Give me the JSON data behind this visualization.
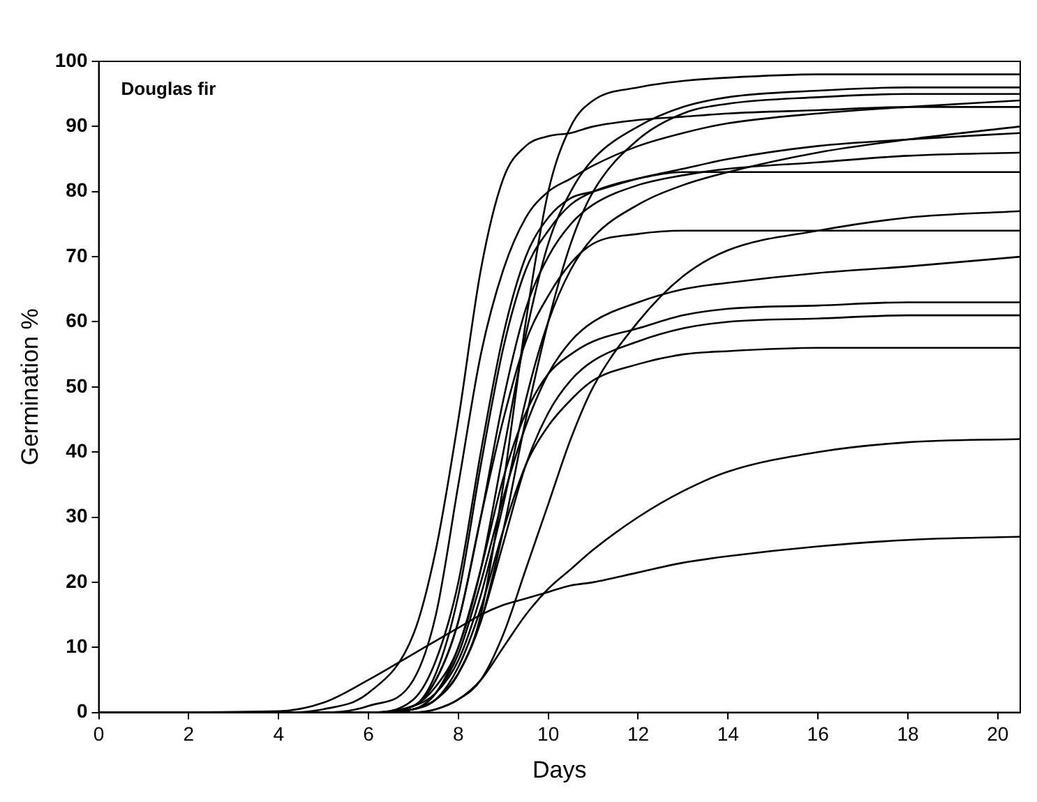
{
  "chart_data": {
    "type": "line",
    "xlabel": "Days",
    "ylabel": "Germination %",
    "annotations": [
      "Douglas fir"
    ],
    "x": [
      0,
      4,
      5,
      6,
      7,
      7.5,
      8,
      8.5,
      9,
      9.5,
      10,
      10.5,
      11,
      12,
      13,
      14,
      16,
      18,
      20.5
    ],
    "xlim": [
      0,
      20.5
    ],
    "xticks": [
      0,
      2,
      4,
      6,
      8,
      10,
      12,
      14,
      16,
      18,
      20
    ],
    "ylim": [
      0,
      100
    ],
    "yticks": [
      0,
      10,
      20,
      30,
      40,
      50,
      60,
      70,
      80,
      90,
      100
    ],
    "grid": false,
    "legend": false,
    "marker": "none",
    "line_style": "solid",
    "series": [
      {
        "color": "#000000",
        "values": [
          0,
          0,
          0,
          0,
          0.5,
          2,
          6,
          15,
          35,
          60,
          80,
          90,
          94,
          96,
          97,
          97.5,
          98,
          98,
          98
        ]
      },
      {
        "color": "#000000",
        "values": [
          0,
          0,
          0.5,
          3,
          12,
          25,
          45,
          68,
          82,
          87,
          88.5,
          89,
          90,
          91,
          91.5,
          92,
          92.5,
          93,
          93
        ]
      },
      {
        "color": "#000000",
        "values": [
          0,
          0,
          0,
          0,
          1,
          4,
          10,
          22,
          40,
          58,
          72,
          80,
          85,
          90,
          93,
          94.5,
          95.5,
          96,
          96
        ]
      },
      {
        "color": "#000000",
        "values": [
          0,
          0,
          0,
          0,
          0.5,
          2,
          6,
          14,
          28,
          45,
          60,
          72,
          80,
          88,
          92,
          93.5,
          94.5,
          95,
          95
        ]
      },
      {
        "color": "#000000",
        "values": [
          0,
          0,
          0,
          1,
          5,
          15,
          35,
          55,
          68,
          76,
          80,
          82,
          84,
          87,
          89,
          90.5,
          92,
          93,
          94
        ]
      },
      {
        "color": "#000000",
        "values": [
          0,
          0,
          0,
          0,
          1,
          3,
          8,
          18,
          32,
          48,
          60,
          68,
          73,
          78,
          81,
          83,
          86,
          88,
          90
        ]
      },
      {
        "color": "#000000",
        "values": [
          0,
          0,
          0,
          0,
          2,
          8,
          20,
          40,
          58,
          70,
          76,
          79,
          80,
          82,
          83.5,
          85,
          87,
          88,
          89
        ]
      },
      {
        "color": "#000000",
        "values": [
          0,
          0,
          0,
          0,
          1,
          5,
          14,
          30,
          48,
          62,
          70,
          75,
          78,
          81,
          82.5,
          83.5,
          84.5,
          85.5,
          86
        ]
      },
      {
        "color": "#000000",
        "values": [
          0,
          0,
          0,
          0,
          1,
          6,
          18,
          38,
          56,
          68,
          74,
          78,
          80,
          82,
          83,
          83,
          83,
          83,
          83
        ]
      },
      {
        "color": "#000000",
        "values": [
          0,
          0,
          0,
          0,
          0,
          0.5,
          2,
          5,
          12,
          22,
          32,
          42,
          50,
          60,
          67,
          71,
          74,
          76,
          77
        ]
      },
      {
        "color": "#000000",
        "values": [
          0,
          0,
          0,
          0,
          1,
          5,
          14,
          30,
          45,
          57,
          64,
          69,
          72,
          73.5,
          74,
          74,
          74,
          74,
          74
        ]
      },
      {
        "color": "#000000",
        "values": [
          0,
          0,
          0,
          0,
          0.5,
          3,
          9,
          20,
          33,
          44,
          52,
          57,
          60,
          63,
          65,
          66,
          67.5,
          68.5,
          70
        ]
      },
      {
        "color": "#000000",
        "values": [
          0,
          0,
          0,
          0,
          0.5,
          3,
          10,
          22,
          36,
          46,
          52,
          55,
          57,
          59,
          61,
          62,
          62.5,
          63,
          63
        ]
      },
      {
        "color": "#000000",
        "values": [
          0,
          0,
          0,
          0,
          0.5,
          2,
          6,
          14,
          26,
          38,
          46,
          51,
          54,
          57,
          59,
          60,
          60.5,
          61,
          61
        ]
      },
      {
        "color": "#000000",
        "values": [
          0,
          0,
          0,
          0,
          0.5,
          2,
          7,
          16,
          28,
          38,
          44,
          48,
          51,
          53.5,
          55,
          55.5,
          56,
          56,
          56
        ]
      },
      {
        "color": "#000000",
        "values": [
          0,
          0,
          0,
          0,
          0,
          0.5,
          2,
          5,
          10,
          15,
          19,
          22,
          25,
          30,
          34,
          37,
          40,
          41.5,
          42
        ]
      },
      {
        "color": "#000000",
        "values": [
          0,
          0.2,
          1.5,
          5,
          9,
          11,
          13,
          15,
          16.5,
          17.5,
          18.5,
          19.5,
          20,
          21.5,
          23,
          24,
          25.5,
          26.5,
          27
        ]
      }
    ]
  }
}
